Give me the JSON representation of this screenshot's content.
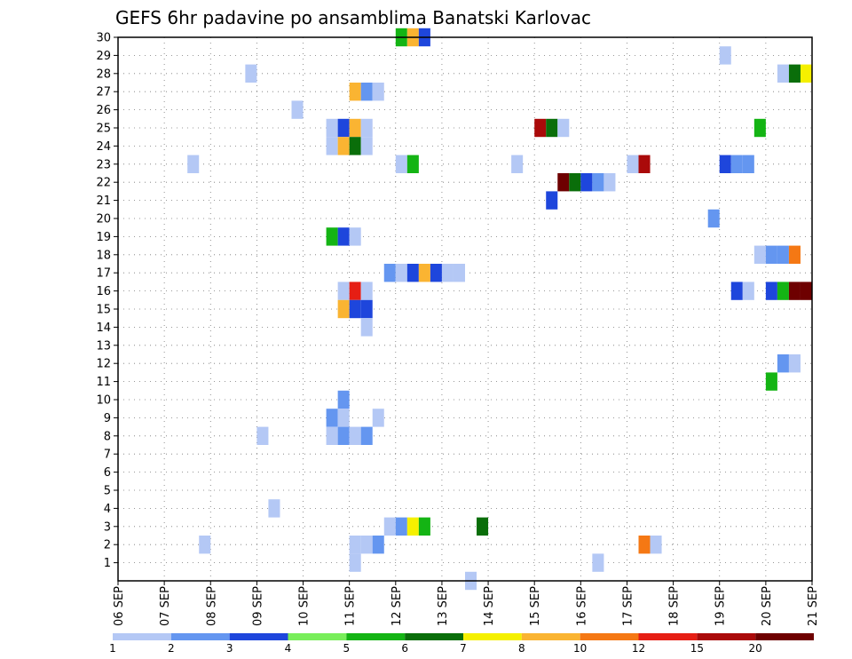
{
  "chart_data": {
    "type": "heatmap",
    "title": "GEFS 6hr padavine po ansamblima Banatski Karlovac",
    "xlabel": "",
    "ylabel": "",
    "x_ticks": [
      "06 SEP",
      "07 SEP",
      "08 SEP",
      "09 SEP",
      "10 SEP",
      "11 SEP",
      "12 SEP",
      "13 SEP",
      "14 SEP",
      "15 SEP",
      "16 SEP",
      "17 SEP",
      "18 SEP",
      "19 SEP",
      "20 SEP",
      "21 SEP"
    ],
    "y_ticks": [
      1,
      2,
      3,
      4,
      5,
      6,
      7,
      8,
      9,
      10,
      11,
      12,
      13,
      14,
      15,
      16,
      17,
      18,
      19,
      20,
      21,
      22,
      23,
      24,
      25,
      26,
      27,
      28,
      29,
      30
    ],
    "x_range_steps": [
      0,
      60
    ],
    "steps_per_day": 4,
    "y_range": [
      0,
      30
    ],
    "grid": true,
    "legend": {
      "placement": "bottom",
      "labels": [
        "1",
        "2",
        "3",
        "4",
        "5",
        "6",
        "7",
        "8",
        "10",
        "12",
        "15",
        "20"
      ],
      "colors": [
        "#b4c8f5",
        "#6496f0",
        "#1e46dc",
        "#78ee5a",
        "#14b414",
        "#0a6e0a",
        "#f5f000",
        "#fab432",
        "#f57814",
        "#e61e14",
        "#aa0a0a",
        "#6e0000"
      ]
    },
    "cells": [
      {
        "m": 30,
        "x": [
          24,
          25,
          26
        ],
        "c": [
          5,
          8,
          3
        ]
      },
      {
        "m": 29,
        "x": [
          52
        ],
        "c": [
          1
        ]
      },
      {
        "m": 28,
        "x": [
          11,
          57,
          58,
          59
        ],
        "c": [
          1,
          1,
          6,
          7
        ]
      },
      {
        "m": 27,
        "x": [
          20,
          21,
          22
        ],
        "c": [
          8,
          2,
          1
        ]
      },
      {
        "m": 26,
        "x": [
          15
        ],
        "c": [
          1
        ]
      },
      {
        "m": 25,
        "x": [
          18,
          19,
          20,
          21,
          36,
          37,
          38,
          55
        ],
        "c": [
          1,
          3,
          8,
          1,
          11,
          6,
          1,
          5
        ]
      },
      {
        "m": 24,
        "x": [
          18,
          19,
          20,
          21
        ],
        "c": [
          1,
          8,
          6,
          1
        ]
      },
      {
        "m": 23,
        "x": [
          6,
          24,
          25,
          34,
          44,
          45,
          52,
          53,
          54
        ],
        "c": [
          1,
          1,
          5,
          1,
          1,
          11,
          3,
          2,
          2
        ]
      },
      {
        "m": 22,
        "x": [
          38,
          39,
          40,
          41,
          42
        ],
        "c": [
          12,
          6,
          3,
          2,
          1
        ]
      },
      {
        "m": 21,
        "x": [
          37
        ],
        "c": [
          3
        ]
      },
      {
        "m": 20,
        "x": [
          51
        ],
        "c": [
          2
        ]
      },
      {
        "m": 19,
        "x": [
          18,
          19,
          20
        ],
        "c": [
          5,
          3,
          1
        ]
      },
      {
        "m": 18,
        "x": [
          55,
          56,
          57,
          58
        ],
        "c": [
          1,
          2,
          2,
          9
        ]
      },
      {
        "m": 17,
        "x": [
          23,
          24,
          25,
          26,
          27,
          28,
          29
        ],
        "c": [
          2,
          1,
          3,
          8,
          3,
          1,
          1
        ]
      },
      {
        "m": 16,
        "x": [
          19,
          20,
          21,
          53,
          54,
          56,
          57,
          58,
          59
        ],
        "c": [
          1,
          10,
          1,
          3,
          1,
          3,
          5,
          12,
          12
        ]
      },
      {
        "m": 15,
        "x": [
          19,
          20,
          21
        ],
        "c": [
          8,
          3,
          3
        ]
      },
      {
        "m": 14,
        "x": [
          21
        ],
        "c": [
          1
        ]
      },
      {
        "m": 12,
        "x": [
          57,
          58
        ],
        "c": [
          2,
          1
        ]
      },
      {
        "m": 11,
        "x": [
          56
        ],
        "c": [
          5
        ]
      },
      {
        "m": 10,
        "x": [
          19
        ],
        "c": [
          2
        ]
      },
      {
        "m": 9,
        "x": [
          18,
          19,
          22
        ],
        "c": [
          2,
          1,
          1
        ]
      },
      {
        "m": 8,
        "x": [
          12,
          18,
          19,
          20,
          21
        ],
        "c": [
          1,
          1,
          2,
          1,
          2
        ]
      },
      {
        "m": 4,
        "x": [
          13
        ],
        "c": [
          1
        ]
      },
      {
        "m": 3,
        "x": [
          23,
          24,
          25,
          26,
          31
        ],
        "c": [
          1,
          2,
          7,
          5,
          6
        ]
      },
      {
        "m": 2,
        "x": [
          7,
          20,
          21,
          22,
          45,
          46
        ],
        "c": [
          1,
          1,
          1,
          2,
          9,
          1
        ]
      },
      {
        "m": 1,
        "x": [
          20,
          41
        ],
        "c": [
          1,
          1
        ]
      },
      {
        "m": 0,
        "x": [
          30
        ],
        "c": [
          1
        ]
      }
    ]
  }
}
